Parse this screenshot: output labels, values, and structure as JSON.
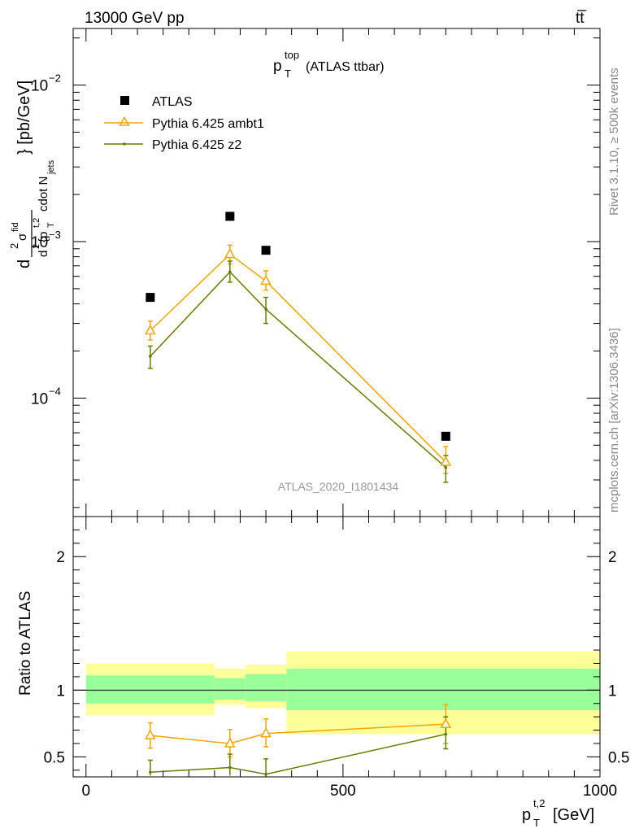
{
  "header": {
    "left": "13000 GeV pp",
    "right": "tt̅"
  },
  "side_labels": {
    "rivet": "Rivet 3.1.10, ≥ 500k events",
    "mcplots": "mcplots.cern.ch [arXiv:1306.3436]"
  },
  "watermark": "ATLAS_2020_I1801434",
  "colors": {
    "atlas": "#000000",
    "ambt1": "#f0a500",
    "z2": "#6b7a00",
    "band_inner": "#99ff99",
    "band_outer": "#ffff99"
  },
  "chart_data": [
    {
      "type": "scatter",
      "title": "p_T^top (ATLAS ttbar)",
      "ylabel": "d²σᶠᴵᵈ / d²{p_T^t,2 cdot N_jets} [pb/GeV]",
      "xlabel": "p_T^t,2 [GeV]",
      "yscale": "log",
      "ylim": [
        1.75e-05,
        0.023
      ],
      "xlim": [
        -25,
        1000
      ],
      "legend_position": "top-left",
      "legend": [
        "ATLAS",
        "Pythia 6.425 ambt1",
        "Pythia 6.425 z2"
      ],
      "y_tick_labels": [
        "10^-4",
        "10^-3",
        "10^-2"
      ],
      "series": [
        {
          "name": "ATLAS",
          "x": [
            125,
            280,
            350,
            700
          ],
          "y": [
            0.00044,
            0.00145,
            0.00088,
            5.7e-05
          ]
        },
        {
          "name": "Pythia 6.425 ambt1",
          "x": [
            125,
            280,
            350,
            700
          ],
          "y": [
            0.00027,
            0.00083,
            0.00056,
            3.9e-05
          ],
          "err_lo": [
            0.000235,
            0.00072,
            0.00049,
            3.3e-05
          ],
          "err_hi": [
            0.00031,
            0.00095,
            0.00065,
            4.9e-05
          ]
        },
        {
          "name": "Pythia 6.425 z2",
          "x": [
            125,
            280,
            350,
            700
          ],
          "y": [
            0.000185,
            0.00064,
            0.00037,
            3.6e-05
          ],
          "err_lo": [
            0.000155,
            0.00055,
            0.0003,
            2.9e-05
          ],
          "err_hi": [
            0.000215,
            0.00075,
            0.00044,
            4.3e-05
          ]
        }
      ]
    },
    {
      "type": "line",
      "ylabel": "Ratio to ATLAS",
      "xlabel": "p_T^t,2 [GeV]",
      "ylim": [
        0.35,
        2.3
      ],
      "xlim": [
        -25,
        1000
      ],
      "x_ticks": [
        0,
        500,
        1000
      ],
      "y_ticks": [
        0.5,
        1,
        2
      ],
      "bands": [
        {
          "x0": 0,
          "x1": 250,
          "inner": [
            0.9,
            1.11
          ],
          "outer": [
            0.81,
            1.2
          ]
        },
        {
          "x0": 250,
          "x1": 310,
          "inner": [
            0.93,
            1.09
          ],
          "outer": [
            0.89,
            1.16
          ]
        },
        {
          "x0": 310,
          "x1": 390,
          "inner": [
            0.915,
            1.12
          ],
          "outer": [
            0.865,
            1.19
          ]
        },
        {
          "x0": 390,
          "x1": 1000,
          "inner": [
            0.85,
            1.16
          ],
          "outer": [
            0.67,
            1.29
          ]
        }
      ],
      "series": [
        {
          "name": "Pythia 6.425 ambt1",
          "x": [
            125,
            280,
            350,
            700
          ],
          "y": [
            0.66,
            0.6,
            0.675,
            0.745
          ],
          "err_lo": [
            0.565,
            0.5,
            0.575,
            0.6
          ],
          "err_hi": [
            0.755,
            0.705,
            0.785,
            0.89
          ]
        },
        {
          "name": "Pythia 6.425 z2",
          "x": [
            125,
            280,
            350,
            700
          ],
          "y": [
            0.385,
            0.42,
            0.37,
            0.67
          ],
          "err_lo": [
            0.3,
            0.33,
            0.28,
            0.56
          ],
          "err_hi": [
            0.475,
            0.52,
            0.485,
            0.8
          ]
        }
      ]
    }
  ]
}
